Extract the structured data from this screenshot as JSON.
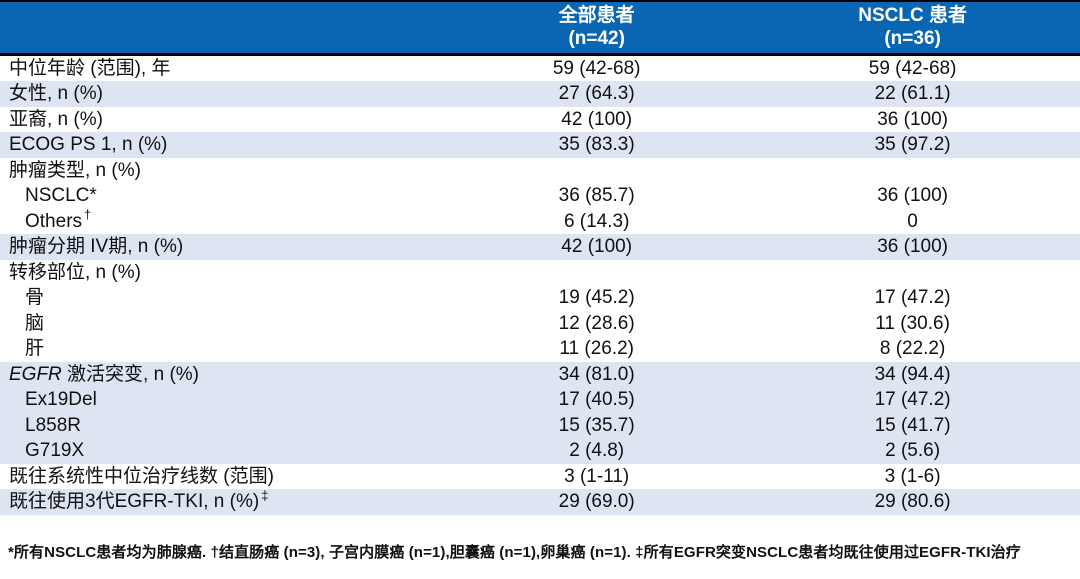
{
  "table": {
    "header": {
      "columns": [
        {
          "title": "全部患者",
          "subtitle": "(n=42)"
        },
        {
          "title": "NSCLC 患者",
          "subtitle": "(n=36)"
        }
      ]
    },
    "rows": [
      {
        "label": "中位年龄 (范围), 年",
        "indent": false,
        "shaded": false,
        "all": "59 (42-68)",
        "nsclc": "59 (42-68)"
      },
      {
        "label": "女性, n (%)",
        "indent": false,
        "shaded": true,
        "all": "27 (64.3)",
        "nsclc": "22 (61.1)"
      },
      {
        "label": "亚裔, n (%)",
        "indent": false,
        "shaded": false,
        "all": "42 (100)",
        "nsclc": "36 (100)"
      },
      {
        "label": "ECOG PS 1, n (%)",
        "indent": false,
        "shaded": true,
        "all": "35 (83.3)",
        "nsclc": "35 (97.2)"
      },
      {
        "label": "肿瘤类型, n (%)",
        "indent": false,
        "shaded": false,
        "all": "",
        "nsclc": ""
      },
      {
        "label": "NSCLC*",
        "indent": true,
        "shaded": false,
        "all": "36 (85.7)",
        "nsclc": "36 (100)"
      },
      {
        "label": "Others",
        "sup": "†",
        "indent": true,
        "shaded": false,
        "all": "6 (14.3)",
        "nsclc": "0"
      },
      {
        "label": "肿瘤分期 IV期, n (%)",
        "indent": false,
        "shaded": true,
        "all": "42 (100)",
        "nsclc": "36 (100)"
      },
      {
        "label": "转移部位, n (%)",
        "indent": false,
        "shaded": false,
        "all": "",
        "nsclc": ""
      },
      {
        "label": "骨",
        "indent": true,
        "shaded": false,
        "all": "19 (45.2)",
        "nsclc": "17 (47.2)"
      },
      {
        "label": "脑",
        "indent": true,
        "shaded": false,
        "all": "12 (28.6)",
        "nsclc": "11 (30.6)"
      },
      {
        "label": "肝",
        "indent": true,
        "shaded": false,
        "all": "11 (26.2)",
        "nsclc": "8 (22.2)"
      },
      {
        "label_italic": "EGFR",
        "label": " 激活突变, n (%)",
        "indent": false,
        "shaded": true,
        "all": "34 (81.0)",
        "nsclc": "34 (94.4)"
      },
      {
        "label": "Ex19Del",
        "indent": true,
        "shaded": true,
        "all": "17 (40.5)",
        "nsclc": "17 (47.2)"
      },
      {
        "label": "L858R",
        "indent": true,
        "shaded": true,
        "all": "15 (35.7)",
        "nsclc": "15 (41.7)"
      },
      {
        "label": "G719X",
        "indent": true,
        "shaded": true,
        "all": "2 (4.8)",
        "nsclc": "2 (5.6)"
      },
      {
        "label": "既往系统性中位治疗线数 (范围)",
        "indent": false,
        "shaded": false,
        "all": "3 (1-11)",
        "nsclc": "3 (1-6)"
      },
      {
        "label": "既往使用3代EGFR-TKI, n (%)",
        "sup": "‡",
        "indent": false,
        "shaded": true,
        "all": "29 (69.0)",
        "nsclc": "29 (80.6)"
      }
    ]
  },
  "footnote": "*所有NSCLC患者均为肺腺癌. †结直肠癌 (n=3), 子宫内膜癌 (n=1),胆囊癌 (n=1),卵巢癌 (n=1). ‡所有EGFR突变NSCLC患者均既往使用过EGFR-TKI治疗",
  "colors": {
    "header_bg": "#0a66b2",
    "shaded_row_bg": "#dde4f2",
    "border": "#000000",
    "header_text": "#ffffff",
    "body_text": "#111111"
  }
}
